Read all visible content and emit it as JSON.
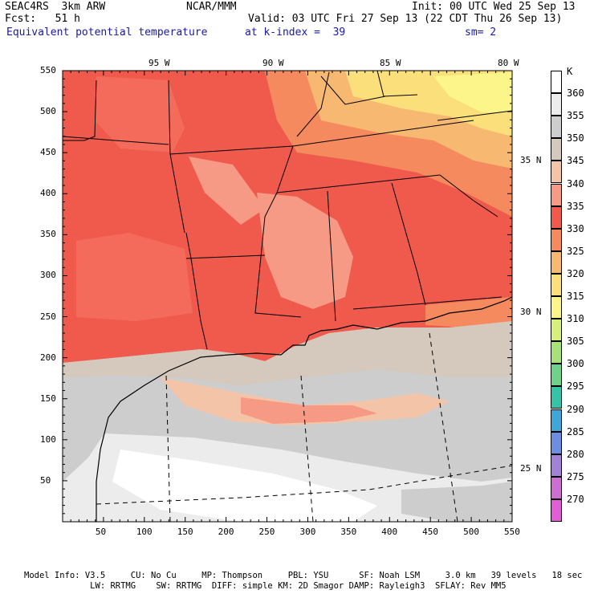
{
  "header": {
    "line1_left": "SEAC4RS  3km ARW",
    "line1_mid": "NCAR/MMM",
    "line1_right": "Init: 00 UTC Wed 25 Sep 13",
    "line2_left": "Fcst:   51 h",
    "line2_right": "Valid: 03 UTC Fri 27 Sep 13 (22 CDT Thu 26 Sep 13)",
    "line3_left": "Equivalent potential temperature",
    "line3_mid": "at k-index =  39",
    "line3_right": "sm= 2"
  },
  "map": {
    "lon_labels": [
      "95 W",
      "90 W",
      "85 W",
      "80 W"
    ],
    "lat_labels": [
      "35 N",
      "30 N",
      "25 N"
    ],
    "x_ticks": [
      "50",
      "100",
      "150",
      "200",
      "250",
      "300",
      "350",
      "400",
      "450",
      "500",
      "550"
    ],
    "y_ticks": [
      "550",
      "500",
      "450",
      "400",
      "350",
      "300",
      "250",
      "200",
      "150",
      "100",
      "50"
    ]
  },
  "colorbar": {
    "unit": "K",
    "levels": [
      {
        "label": "360",
        "color": "#ffffff"
      },
      {
        "label": "355",
        "color": "#ececec"
      },
      {
        "label": "350",
        "color": "#cdcdcd"
      },
      {
        "label": "345",
        "color": "#d4c9bc"
      },
      {
        "label": "340",
        "color": "#f4c4a8"
      },
      {
        "label": "335",
        "color": "#f79a85"
      },
      {
        "label": "330",
        "color": "#ef5a4c"
      },
      {
        "label": "325",
        "color": "#f48a5e"
      },
      {
        "label": "320",
        "color": "#f7b872"
      },
      {
        "label": "315",
        "color": "#fbdf7a"
      },
      {
        "label": "310",
        "color": "#fbf58a"
      },
      {
        "label": "305",
        "color": "#d7f07b"
      },
      {
        "label": "300",
        "color": "#a8e07a"
      },
      {
        "label": "295",
        "color": "#6fd28a"
      },
      {
        "label": "290",
        "color": "#36c4a7"
      },
      {
        "label": "285",
        "color": "#3fa7d8"
      },
      {
        "label": "280",
        "color": "#6f8de0"
      },
      {
        "label": "275",
        "color": "#a083d6"
      },
      {
        "label": "270",
        "color": "#cc6fd0"
      },
      {
        "label": "",
        "color": "#e25ed6"
      }
    ]
  },
  "footer": {
    "line1": "Model Info: V3.5     CU: No Cu     MP: Thompson     PBL: YSU      SF: Noah LSM     3.0 km   39 levels   18 sec",
    "line2": "             LW: RRTMG    SW: RRTMG  DIFF: simple KM: 2D Smagor DAMP: Rayleigh3  SFLAY: Rev MM5"
  }
}
